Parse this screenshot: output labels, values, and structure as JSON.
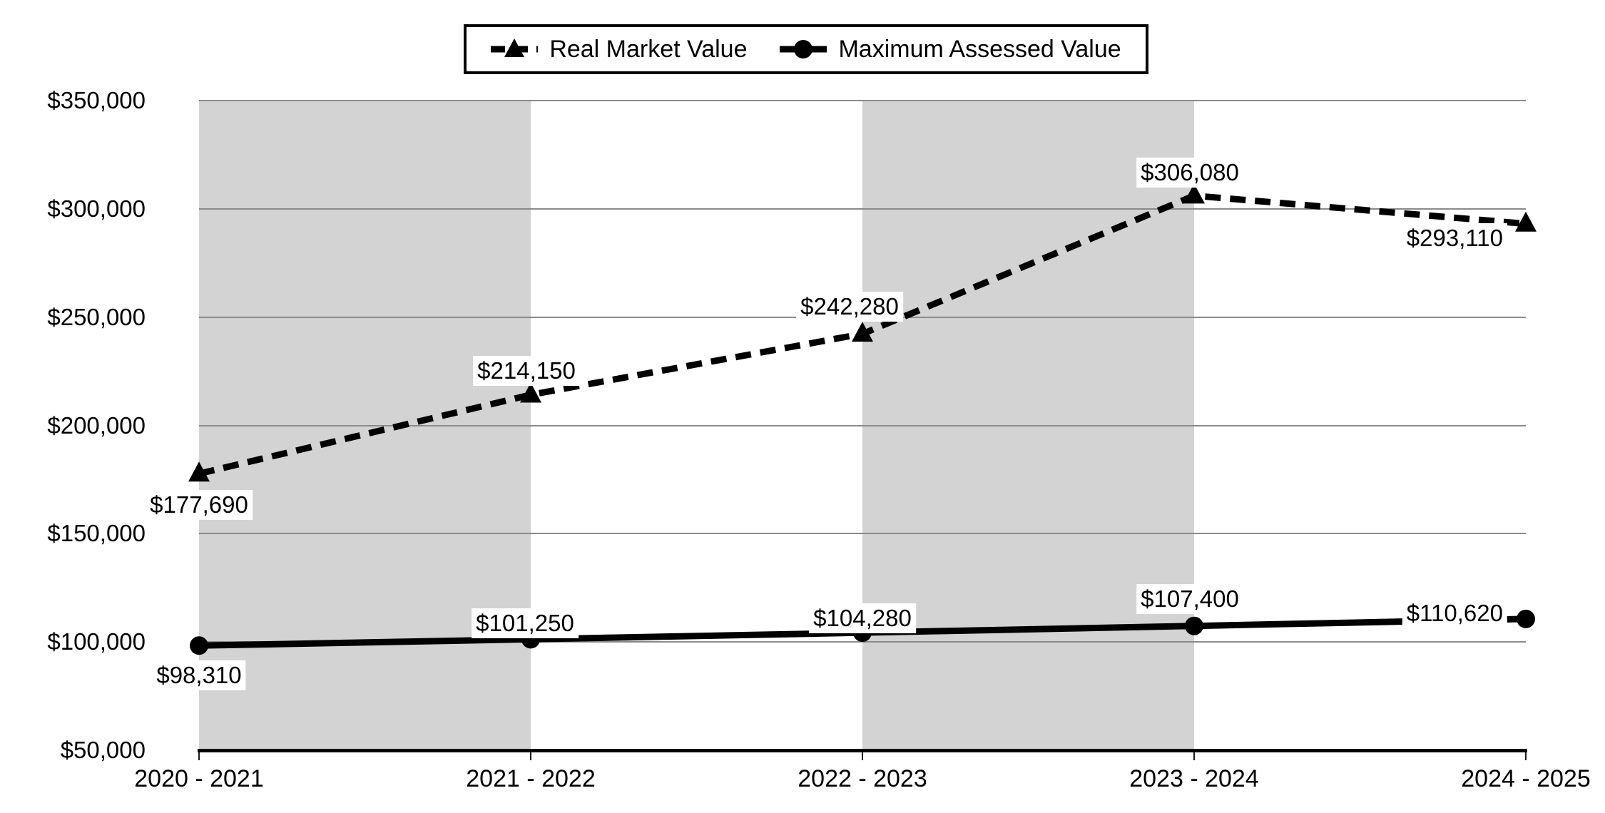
{
  "chart_data": {
    "type": "line",
    "categories": [
      "2020 - 2021",
      "2021 - 2022",
      "2022 - 2023",
      "2023 - 2024",
      "2024 - 2025"
    ],
    "series": [
      {
        "name": "Real Market Value",
        "line_style": "dashed",
        "marker": "triangle",
        "color": "#000000",
        "values": [
          177690,
          214150,
          242280,
          306080,
          293110
        ],
        "labels": [
          "$177,690",
          "$214,150",
          "$242,280",
          "$306,080",
          "$293,110"
        ]
      },
      {
        "name": "Maximum Assessed Value",
        "line_style": "solid",
        "marker": "circle",
        "color": "#000000",
        "values": [
          98310,
          101250,
          104280,
          107400,
          110620
        ],
        "labels": [
          "$98,310",
          "$101,250",
          "$104,280",
          "$107,400",
          "$110,620"
        ]
      }
    ],
    "y_axis": {
      "min": 50000,
      "max": 350000,
      "step": 50000,
      "tick_labels": [
        "$350,000",
        "$300,000",
        "$250,000",
        "$200,000",
        "$150,000",
        "$100,000",
        "$50,000"
      ]
    },
    "grid": true,
    "legend_position": "top-center",
    "plot_bands": {
      "color": "#d3d3d3",
      "intervals": [
        [
          0,
          1
        ],
        [
          2,
          3
        ]
      ]
    }
  },
  "legend": {
    "items": [
      {
        "label": "Real Market Value"
      },
      {
        "label": "Maximum Assessed Value"
      }
    ]
  },
  "colors": {
    "line": "#000000",
    "band": "#d3d3d3",
    "gridline": "#8a8a8a",
    "background": "#ffffff",
    "label_background": "#ffffff"
  }
}
